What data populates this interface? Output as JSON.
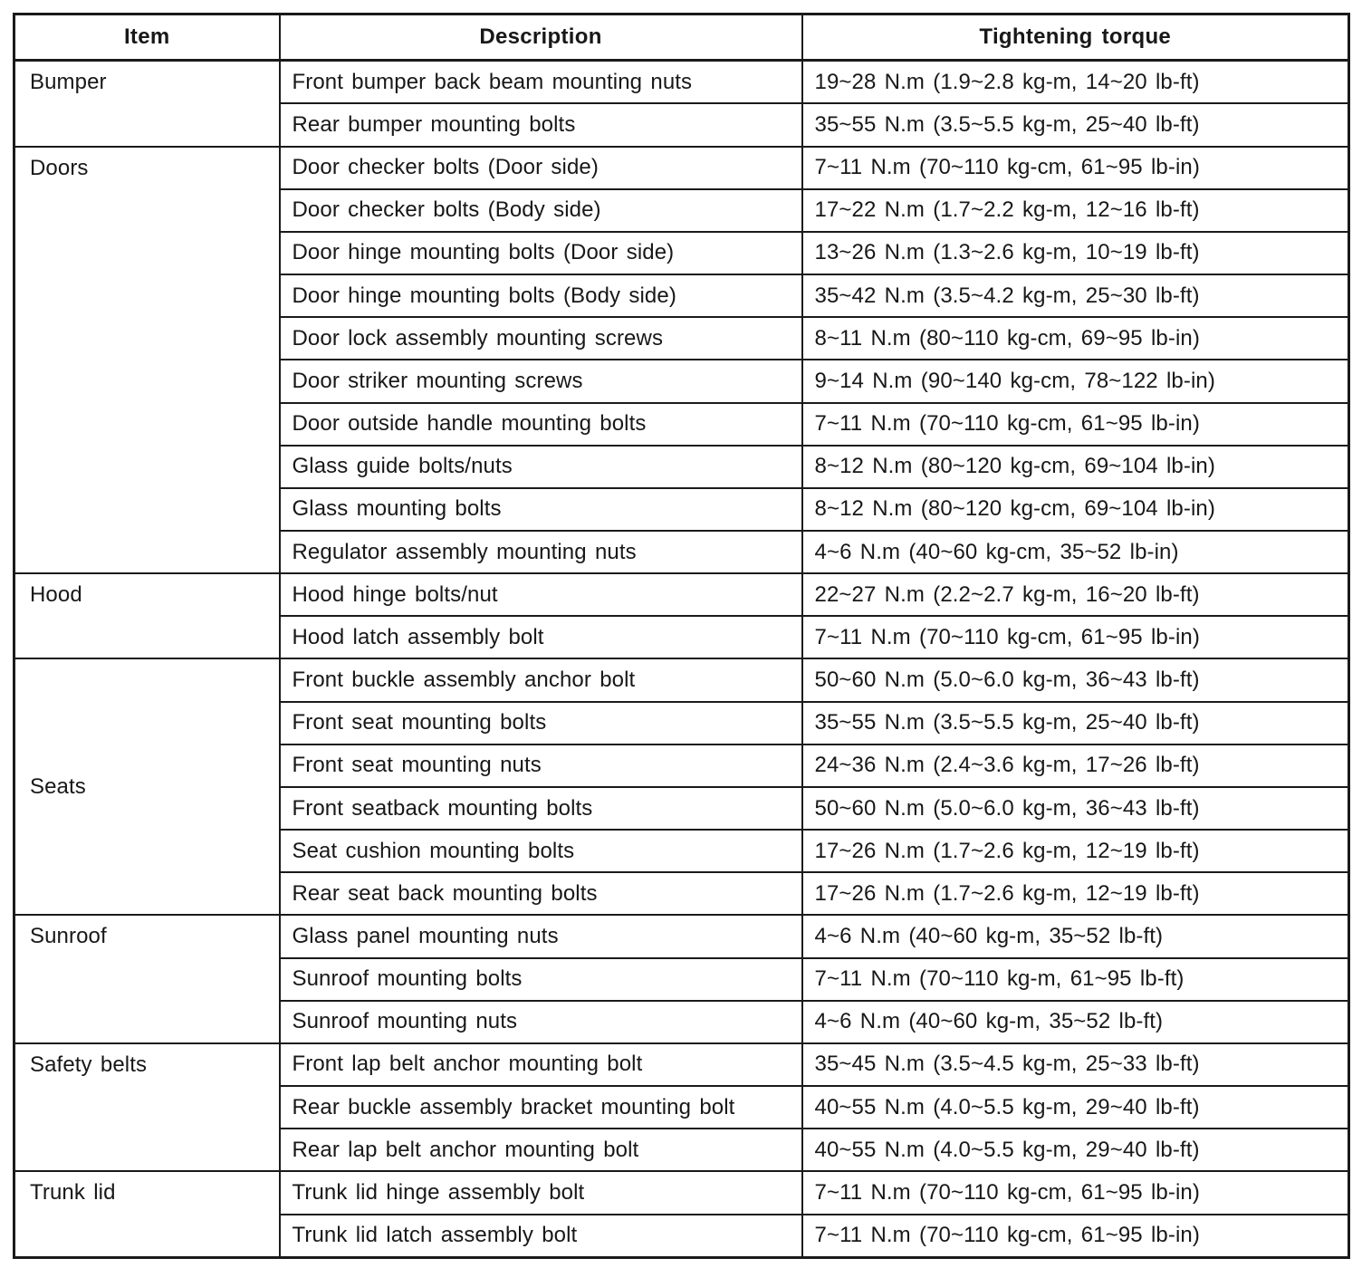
{
  "page": {
    "background": "#ffffff",
    "ink_color": "#1a1a1a"
  },
  "table": {
    "headers": [
      "Item",
      "Description",
      "Tightening torque"
    ],
    "groups": [
      {
        "item": "Bumper",
        "valign": "top",
        "rows": [
          {
            "description": "Front bumper back beam mounting nuts",
            "torque": "19~28 N.m (1.9~2.8 kg-m, 14~20 lb-ft)"
          },
          {
            "description": "Rear bumper mounting bolts",
            "torque": "35~55 N.m (3.5~5.5 kg-m, 25~40 lb-ft)"
          }
        ]
      },
      {
        "item": "Doors",
        "valign": "top",
        "rows": [
          {
            "description": "Door checker bolts (Door side)",
            "torque": "7~11 N.m (70~110 kg-cm, 61~95 lb-in)"
          },
          {
            "description": "Door checker bolts (Body side)",
            "torque": "17~22 N.m (1.7~2.2 kg-m, 12~16 lb-ft)"
          },
          {
            "description": "Door hinge mounting bolts (Door side)",
            "torque": "13~26 N.m (1.3~2.6 kg-m, 10~19 lb-ft)"
          },
          {
            "description": "Door hinge mounting bolts (Body side)",
            "torque": "35~42 N.m (3.5~4.2 kg-m, 25~30 lb-ft)"
          },
          {
            "description": "Door lock assembly mounting screws",
            "torque": "8~11 N.m (80~110 kg-cm, 69~95 lb-in)"
          },
          {
            "description": "Door striker mounting screws",
            "torque": "9~14 N.m (90~140 kg-cm, 78~122 lb-in)"
          },
          {
            "description": "Door outside handle mounting bolts",
            "torque": "7~11 N.m (70~110 kg-cm, 61~95 lb-in)"
          },
          {
            "description": "Glass guide bolts/nuts",
            "torque": "8~12 N.m (80~120 kg-cm, 69~104 lb-in)"
          },
          {
            "description": "Glass mounting bolts",
            "torque": "8~12 N.m (80~120 kg-cm, 69~104 lb-in)"
          },
          {
            "description": "Regulator assembly mounting nuts",
            "torque": "4~6 N.m (40~60 kg-cm, 35~52 lb-in)"
          }
        ]
      },
      {
        "item": "Hood",
        "valign": "top",
        "rows": [
          {
            "description": "Hood hinge bolts/nut",
            "torque": "22~27 N.m (2.2~2.7 kg-m, 16~20 lb-ft)"
          },
          {
            "description": "Hood latch assembly bolt",
            "torque": "7~11 N.m (70~110 kg-cm, 61~95 lb-in)"
          }
        ]
      },
      {
        "item": "Seats",
        "valign": "middle",
        "rows": [
          {
            "description": "Front buckle assembly anchor bolt",
            "torque": "50~60 N.m (5.0~6.0 kg-m, 36~43 lb-ft)"
          },
          {
            "description": "Front seat mounting bolts",
            "torque": "35~55 N.m (3.5~5.5 kg-m, 25~40 lb-ft)"
          },
          {
            "description": "Front seat mounting nuts",
            "torque": "24~36 N.m (2.4~3.6 kg-m, 17~26 lb-ft)"
          },
          {
            "description": "Front seatback mounting bolts",
            "torque": "50~60 N.m (5.0~6.0 kg-m, 36~43 lb-ft)"
          },
          {
            "description": "Seat cushion mounting bolts",
            "torque": "17~26 N.m (1.7~2.6 kg-m, 12~19 lb-ft)"
          },
          {
            "description": "Rear seat back mounting bolts",
            "torque": "17~26 N.m (1.7~2.6 kg-m, 12~19 lb-ft)"
          }
        ]
      },
      {
        "item": "Sunroof",
        "valign": "top",
        "rows": [
          {
            "description": "Glass panel mounting nuts",
            "torque": "4~6 N.m (40~60 kg-m, 35~52 lb-ft)"
          },
          {
            "description": "Sunroof mounting bolts",
            "torque": "7~11 N.m (70~110 kg-m, 61~95 lb-ft)"
          },
          {
            "description": "Sunroof mounting nuts",
            "torque": "4~6 N.m (40~60 kg-m, 35~52 lb-ft)"
          }
        ]
      },
      {
        "item": "Safety belts",
        "valign": "top",
        "rows": [
          {
            "description": "Front lap belt anchor mounting bolt",
            "torque": "35~45 N.m (3.5~4.5 kg-m, 25~33 lb-ft)"
          },
          {
            "description": "Rear buckle assembly bracket mounting bolt",
            "torque": "40~55 N.m (4.0~5.5 kg-m, 29~40 lb-ft)"
          },
          {
            "description": "Rear lap belt anchor mounting bolt",
            "torque": "40~55 N.m (4.0~5.5 kg-m, 29~40 lb-ft)"
          }
        ]
      },
      {
        "item": "Trunk lid",
        "valign": "top",
        "rows": [
          {
            "description": "Trunk lid hinge assembly bolt",
            "torque": "7~11 N.m (70~110 kg-cm, 61~95 lb-in)"
          },
          {
            "description": "Trunk lid latch assembly bolt",
            "torque": "7~11 N.m (70~110 kg-cm, 61~95 lb-in)"
          }
        ]
      }
    ]
  }
}
